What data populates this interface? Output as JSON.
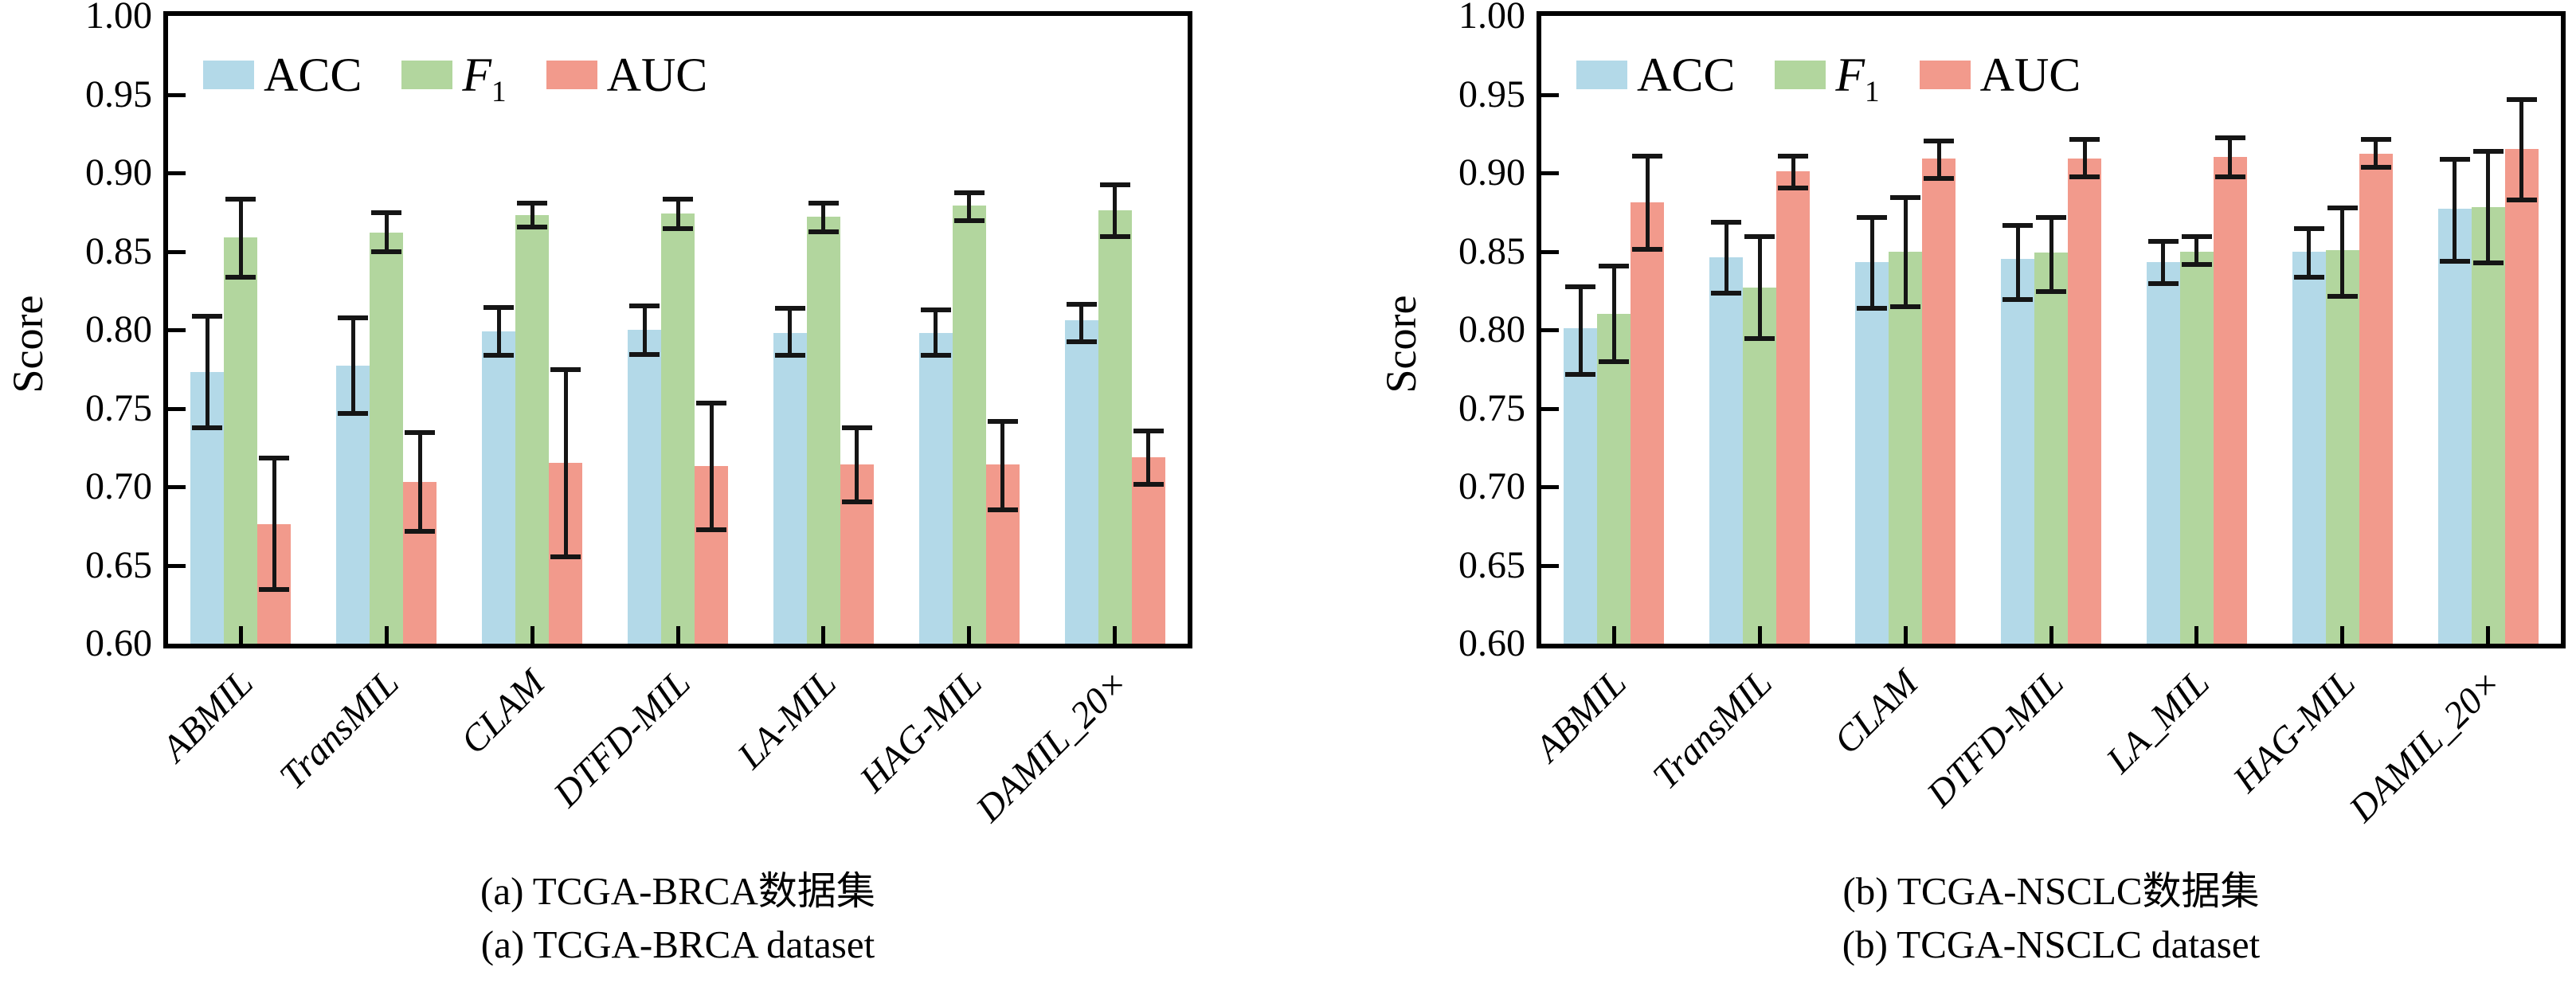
{
  "page": {
    "background": "#ffffff",
    "axis_color": "#000000",
    "error_bar_color": "#151515"
  },
  "chart_data": [
    {
      "type": "bar",
      "panel": "left",
      "ylabel": "Score",
      "ylim": [
        0.6,
        1.0
      ],
      "ytick_labels": [
        "1.00",
        "0.95",
        "0.90",
        "0.85",
        "0.80",
        "0.75",
        "0.70",
        "0.65",
        "0.60"
      ],
      "grid": false,
      "error_bars": true,
      "legend_position": "top-left-inside",
      "categories": [
        "ABMIL",
        "TransMIL",
        "CLAM",
        "DTFD-MIL",
        "LA-MIL",
        "HAG-MIL",
        "DAMIL_20×"
      ],
      "series": [
        {
          "name": "ACC",
          "color": "#B3D9E8",
          "values": [
            0.773,
            0.777,
            0.799,
            0.8,
            0.798,
            0.798,
            0.806
          ],
          "err_lo": [
            0.736,
            0.745,
            0.782,
            0.783,
            0.782,
            0.782,
            0.791
          ],
          "err_hi": [
            0.81,
            0.809,
            0.816,
            0.817,
            0.815,
            0.814,
            0.818
          ]
        },
        {
          "name": "F1",
          "color": "#B2D69E",
          "values": [
            0.859,
            0.862,
            0.873,
            0.874,
            0.872,
            0.879,
            0.876
          ],
          "err_lo": [
            0.832,
            0.848,
            0.864,
            0.863,
            0.861,
            0.868,
            0.858
          ],
          "err_hi": [
            0.885,
            0.876,
            0.882,
            0.885,
            0.882,
            0.889,
            0.894
          ]
        },
        {
          "name": "AUC",
          "color": "#F29A8C",
          "values": [
            0.676,
            0.703,
            0.715,
            0.713,
            0.714,
            0.714,
            0.719
          ],
          "err_lo": [
            0.633,
            0.67,
            0.654,
            0.671,
            0.689,
            0.684,
            0.7
          ],
          "err_hi": [
            0.72,
            0.736,
            0.776,
            0.755,
            0.739,
            0.743,
            0.737
          ]
        }
      ],
      "caption_zh": "(a) TCGA-BRCA数据集",
      "caption_en": "(a) TCGA-BRCA dataset"
    },
    {
      "type": "bar",
      "panel": "right",
      "ylabel": "Score",
      "ylim": [
        0.6,
        1.0
      ],
      "ytick_labels": [
        "1.00",
        "0.95",
        "0.90",
        "0.85",
        "0.80",
        "0.75",
        "0.70",
        "0.65",
        "0.60"
      ],
      "grid": false,
      "error_bars": true,
      "legend_position": "top-left-inside",
      "categories": [
        "ABMIL",
        "TransMIL",
        "CLAM",
        "DTFD-MIL",
        "LA_MIL",
        "HAG-MIL",
        "DAMIL_20×"
      ],
      "series": [
        {
          "name": "ACC",
          "color": "#B3D9E8",
          "values": [
            0.801,
            0.846,
            0.843,
            0.845,
            0.843,
            0.85,
            0.877
          ],
          "err_lo": [
            0.77,
            0.822,
            0.812,
            0.818,
            0.828,
            0.832,
            0.842
          ],
          "err_hi": [
            0.829,
            0.87,
            0.873,
            0.868,
            0.858,
            0.866,
            0.91
          ]
        },
        {
          "name": "F1",
          "color": "#B2D69E",
          "values": [
            0.81,
            0.827,
            0.85,
            0.849,
            0.85,
            0.851,
            0.878
          ],
          "err_lo": [
            0.778,
            0.793,
            0.813,
            0.823,
            0.84,
            0.82,
            0.841
          ],
          "err_hi": [
            0.842,
            0.861,
            0.886,
            0.873,
            0.861,
            0.879,
            0.915
          ]
        },
        {
          "name": "AUC",
          "color": "#F29A8C",
          "values": [
            0.881,
            0.901,
            0.909,
            0.909,
            0.91,
            0.912,
            0.915
          ],
          "err_lo": [
            0.85,
            0.889,
            0.895,
            0.896,
            0.896,
            0.902,
            0.881
          ],
          "err_hi": [
            0.912,
            0.912,
            0.922,
            0.923,
            0.924,
            0.923,
            0.948
          ]
        }
      ],
      "caption_zh": "(b) TCGA-NSCLC数据集",
      "caption_en": "(b) TCGA-NSCLC dataset"
    }
  ]
}
